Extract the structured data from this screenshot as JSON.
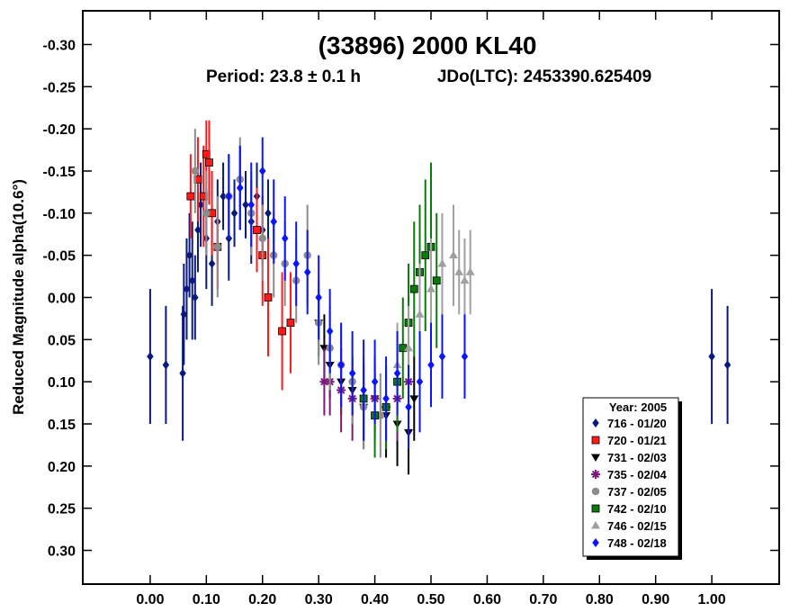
{
  "chart_data": {
    "type": "scatter",
    "title": "(33896) 2000 KL40",
    "subtitle_period": "Period: 23.8 ± 0.1 h",
    "subtitle_epoch": "JDo(LTC): 2453390.625409",
    "ylabel": "Reduced Magnitude alpha(10.6°)",
    "xlabel": "",
    "xlim": [
      -0.12,
      1.12
    ],
    "ylim": [
      -0.34,
      0.34
    ],
    "y_inverted": true,
    "x_ticks": [
      "0.00",
      "0.10",
      "0.20",
      "0.30",
      "0.40",
      "0.50",
      "0.60",
      "0.70",
      "0.80",
      "0.90",
      "1.00"
    ],
    "y_ticks": [
      "-0.30",
      "-0.25",
      "-0.20",
      "-0.15",
      "-0.10",
      "-0.05",
      "0.00",
      "0.05",
      "0.10",
      "0.15",
      "0.20",
      "0.25",
      "0.30"
    ],
    "legend_title": "Year: 2005",
    "legend_position": "bottom-right",
    "series": [
      {
        "name": "716 - 01/20",
        "color": "#0a1a7a",
        "marker": "diamond",
        "points": [
          [
            0.0,
            0.07
          ],
          [
            0.028,
            0.08
          ],
          [
            0.058,
            0.09
          ],
          [
            0.06,
            0.02
          ],
          [
            0.065,
            -0.01
          ],
          [
            0.07,
            -0.05
          ],
          [
            0.075,
            -0.02
          ],
          [
            0.08,
            0.0
          ],
          [
            0.085,
            -0.08
          ],
          [
            0.09,
            -0.11
          ],
          [
            0.1,
            -0.07
          ],
          [
            0.11,
            -0.04
          ],
          [
            0.12,
            -0.09
          ],
          [
            0.13,
            -0.12
          ],
          [
            0.14,
            -0.07
          ],
          [
            0.15,
            -0.1
          ],
          [
            0.16,
            -0.13
          ],
          [
            0.17,
            -0.11
          ],
          [
            0.18,
            -0.09
          ],
          [
            0.19,
            -0.12
          ],
          [
            0.2,
            -0.08
          ],
          [
            0.21,
            -0.1
          ],
          [
            1.0,
            0.07
          ],
          [
            1.028,
            0.08
          ]
        ],
        "err": [
          0.08,
          0.07,
          0.08,
          0.06,
          0.06,
          0.05,
          0.07,
          0.05,
          0.05,
          0.05,
          0.06,
          0.05,
          0.05,
          0.04,
          0.05,
          0.04,
          0.05,
          0.04,
          0.05,
          0.04,
          0.04,
          0.04,
          0.08,
          0.07
        ]
      },
      {
        "name": "720 - 01/21",
        "color": "#ff1a1a",
        "marker": "square",
        "points": [
          [
            0.072,
            -0.12
          ],
          [
            0.085,
            -0.14
          ],
          [
            0.095,
            -0.12
          ],
          [
            0.1,
            -0.17
          ],
          [
            0.105,
            -0.16
          ],
          [
            0.11,
            -0.1
          ],
          [
            0.12,
            -0.06
          ],
          [
            0.19,
            -0.08
          ],
          [
            0.2,
            -0.05
          ],
          [
            0.21,
            0.0
          ],
          [
            0.235,
            0.04
          ],
          [
            0.25,
            0.03
          ]
        ],
        "err": [
          0.05,
          0.05,
          0.06,
          0.04,
          0.05,
          0.05,
          0.05,
          0.05,
          0.06,
          0.07,
          0.07,
          0.06
        ]
      },
      {
        "name": "731 - 02/03",
        "color": "#000000",
        "marker": "triangle-down",
        "points": [
          [
            0.3,
            0.03
          ],
          [
            0.31,
            0.06
          ],
          [
            0.32,
            0.08
          ],
          [
            0.34,
            0.1
          ],
          [
            0.36,
            0.11
          ],
          [
            0.38,
            0.13
          ],
          [
            0.4,
            0.12
          ],
          [
            0.42,
            0.14
          ],
          [
            0.44,
            0.15
          ],
          [
            0.46,
            0.16
          ],
          [
            0.47,
            0.12
          ]
        ],
        "err": [
          0.04,
          0.04,
          0.04,
          0.04,
          0.04,
          0.05,
          0.04,
          0.05,
          0.05,
          0.05,
          0.05
        ]
      },
      {
        "name": "735 - 02/04",
        "color": "#7a1a7a",
        "marker": "asterisk",
        "points": [
          [
            0.31,
            0.1
          ],
          [
            0.32,
            0.1
          ],
          [
            0.34,
            0.11
          ],
          [
            0.36,
            0.12
          ],
          [
            0.4,
            0.12
          ],
          [
            0.42,
            0.13
          ],
          [
            0.44,
            0.12
          ],
          [
            0.46,
            0.1
          ]
        ],
        "err": [
          0.04,
          0.04,
          0.05,
          0.05,
          0.05,
          0.05,
          0.05,
          0.05
        ]
      },
      {
        "name": "737 - 02/05",
        "color": "#8c8c8c",
        "marker": "circle",
        "points": [
          [
            0.08,
            -0.15
          ],
          [
            0.1,
            -0.1
          ],
          [
            0.12,
            -0.06
          ],
          [
            0.14,
            -0.12
          ],
          [
            0.16,
            -0.14
          ],
          [
            0.18,
            -0.1
          ],
          [
            0.2,
            -0.07
          ],
          [
            0.22,
            -0.05
          ],
          [
            0.24,
            -0.04
          ],
          [
            0.26,
            -0.02
          ],
          [
            0.28,
            -0.05
          ],
          [
            0.3,
            0.03
          ],
          [
            0.32,
            0.06
          ],
          [
            0.34,
            0.08
          ],
          [
            0.36,
            0.1
          ],
          [
            0.38,
            0.13
          ],
          [
            0.41,
            0.14
          ]
        ],
        "err": [
          0.05,
          0.05,
          0.06,
          0.05,
          0.05,
          0.05,
          0.05,
          0.05,
          0.05,
          0.05,
          0.06,
          0.05,
          0.05,
          0.05,
          0.05,
          0.05,
          0.05
        ]
      },
      {
        "name": "742 - 02/10",
        "color": "#0a7a0a",
        "marker": "square",
        "points": [
          [
            0.38,
            0.12
          ],
          [
            0.4,
            0.14
          ],
          [
            0.42,
            0.13
          ],
          [
            0.44,
            0.1
          ],
          [
            0.45,
            0.06
          ],
          [
            0.46,
            0.03
          ],
          [
            0.47,
            -0.01
          ],
          [
            0.48,
            -0.03
          ],
          [
            0.49,
            -0.05
          ],
          [
            0.5,
            -0.06
          ],
          [
            0.51,
            -0.02
          ]
        ],
        "err": [
          0.05,
          0.05,
          0.05,
          0.06,
          0.06,
          0.07,
          0.08,
          0.08,
          0.09,
          0.1,
          0.08
        ]
      },
      {
        "name": "746 - 02/15",
        "color": "#a0a0a0",
        "marker": "triangle-up",
        "points": [
          [
            0.44,
            0.08
          ],
          [
            0.46,
            0.06
          ],
          [
            0.48,
            0.02
          ],
          [
            0.5,
            -0.01
          ],
          [
            0.52,
            -0.04
          ],
          [
            0.54,
            -0.05
          ],
          [
            0.55,
            -0.03
          ],
          [
            0.56,
            -0.02
          ],
          [
            0.57,
            -0.03
          ]
        ],
        "err": [
          0.05,
          0.05,
          0.06,
          0.06,
          0.06,
          0.06,
          0.05,
          0.05,
          0.05
        ]
      },
      {
        "name": "748 - 02/18",
        "color": "#0a14ff",
        "marker": "diamond",
        "points": [
          [
            0.14,
            -0.12
          ],
          [
            0.16,
            -0.13
          ],
          [
            0.18,
            -0.11
          ],
          [
            0.2,
            -0.15
          ],
          [
            0.22,
            -0.09
          ],
          [
            0.24,
            -0.07
          ],
          [
            0.26,
            -0.04
          ],
          [
            0.28,
            -0.03
          ],
          [
            0.3,
            0.0
          ],
          [
            0.32,
            0.04
          ],
          [
            0.34,
            0.08
          ],
          [
            0.36,
            0.09
          ],
          [
            0.38,
            0.11
          ],
          [
            0.4,
            0.1
          ],
          [
            0.42,
            0.12
          ],
          [
            0.44,
            0.09
          ],
          [
            0.46,
            0.13
          ],
          [
            0.48,
            0.1
          ],
          [
            0.5,
            0.08
          ],
          [
            0.52,
            0.07
          ],
          [
            0.56,
            0.07
          ]
        ],
        "err": [
          0.05,
          0.05,
          0.05,
          0.04,
          0.05,
          0.05,
          0.05,
          0.05,
          0.05,
          0.05,
          0.05,
          0.05,
          0.06,
          0.05,
          0.05,
          0.05,
          0.05,
          0.06,
          0.05,
          0.05,
          0.05
        ]
      }
    ]
  }
}
